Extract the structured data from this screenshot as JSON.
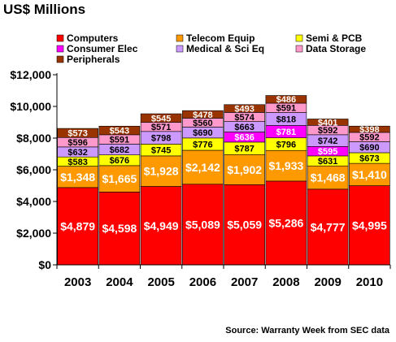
{
  "header": {
    "title": "US$ Millions"
  },
  "footer": {
    "source": "Source: Warranty Week from SEC data"
  },
  "chart_data": {
    "type": "bar",
    "stacked": true,
    "categories": [
      "2003",
      "2004",
      "2005",
      "2006",
      "2007",
      "2008",
      "2009",
      "2010"
    ],
    "ylim": [
      0,
      12000
    ],
    "ytick_labels": [
      "$0",
      "$2,000",
      "$4,000",
      "$6,000",
      "$8,000",
      "$10,000",
      "$12,000"
    ],
    "grid": false,
    "legend_position": "top",
    "series": [
      {
        "name": "Computers",
        "color": "#ff0000",
        "label_color": "#ffffff",
        "values": [
          4879,
          4598,
          4949,
          5089,
          5059,
          5286,
          4777,
          4995
        ],
        "labels": [
          "$4,879",
          "$4,598",
          "$4,949",
          "$5,089",
          "$5,059",
          "$5,286",
          "$4,777",
          "$4,995"
        ]
      },
      {
        "name": "Telecom Equip",
        "color": "#ff9900",
        "label_color": "#ffffff",
        "values": [
          1348,
          1665,
          1928,
          2142,
          1902,
          1933,
          1468,
          1410
        ],
        "labels": [
          "$1,348",
          "$1,665",
          "$1,928",
          "$2,142",
          "$1,902",
          "$1,933",
          "$1,468",
          "$1,410"
        ]
      },
      {
        "name": "Semi & PCB",
        "color": "#ffff00",
        "label_color": "#000000",
        "values": [
          583,
          676,
          745,
          776,
          787,
          796,
          631,
          673
        ],
        "labels": [
          "$583",
          "$676",
          "$745",
          "$776",
          "$787",
          "$796",
          "$631",
          "$673"
        ]
      },
      {
        "name": "Consumer Elec",
        "color": "#ff00ff",
        "label_color": "#ffffff",
        "values": [
          0,
          0,
          0,
          0,
          636,
          781,
          595,
          0
        ],
        "labels": [
          "",
          "",
          "",
          "",
          "$636",
          "$781",
          "$595",
          ""
        ]
      },
      {
        "name": "Medical & Sci Eq",
        "color": "#cc99ff",
        "label_color": "#000000",
        "values": [
          632,
          682,
          798,
          690,
          663,
          818,
          742,
          690
        ],
        "labels": [
          "$632",
          "$682",
          "$798",
          "$690",
          "$663",
          "$818",
          "$742",
          "$690"
        ]
      },
      {
        "name": "Data Storage",
        "color": "#ff99cc",
        "label_color": "#000000",
        "values": [
          596,
          591,
          571,
          560,
          574,
          591,
          592,
          592
        ],
        "labels": [
          "$596",
          "$591",
          "$571",
          "$560",
          "$574",
          "$591",
          "$592",
          "$592"
        ]
      },
      {
        "name": "Peripherals",
        "color": "#993300",
        "label_color": "#ffffff",
        "values": [
          573,
          543,
          545,
          478,
          493,
          486,
          401,
          398
        ],
        "labels": [
          "$573",
          "$543",
          "$545",
          "$478",
          "$493",
          "$486",
          "$401",
          "$398"
        ]
      }
    ]
  }
}
